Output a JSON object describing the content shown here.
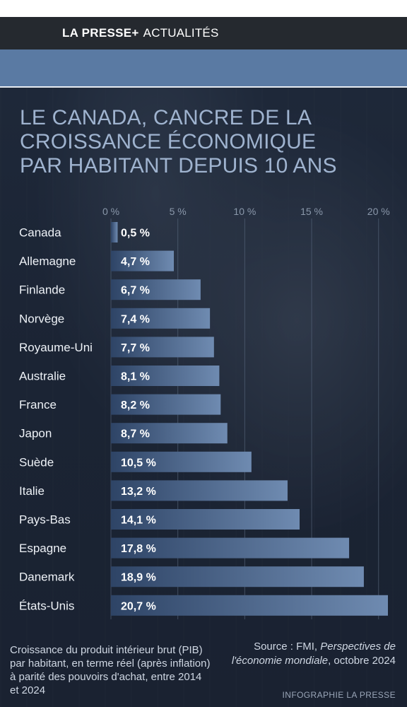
{
  "header": {
    "brand": "LA PRESSE+",
    "section": "ACTUALITÉS"
  },
  "colors": {
    "accent": "#5a7aa3",
    "bar_start": "#2e4466",
    "bar_end": "#6f8bb1",
    "title": "#9fb3cf"
  },
  "chart_data": {
    "type": "bar",
    "orientation": "horizontal",
    "title": "LE CANADA, CANCRE DE LA\nCROISSANCE ÉCONOMIQUE\nPAR HABITANT DEPUIS 10 ANS",
    "xlabel": "",
    "ylabel": "",
    "xlim": [
      0,
      20.7
    ],
    "ticks": [
      0,
      5,
      10,
      15,
      20
    ],
    "tick_labels": [
      "0 %",
      "5 %",
      "10 %",
      "15 %",
      "20 %"
    ],
    "categories": [
      "Canada",
      "Allemagne",
      "Finlande",
      "Norvège",
      "Royaume-Uni",
      "Australie",
      "France",
      "Japon",
      "Suède",
      "Italie",
      "Pays-Bas",
      "Espagne",
      "Danemark",
      "États-Unis"
    ],
    "values": [
      0.5,
      4.7,
      6.7,
      7.4,
      7.7,
      8.1,
      8.2,
      8.7,
      10.5,
      13.2,
      14.1,
      17.8,
      18.9,
      20.7
    ],
    "value_labels": [
      "0,5 %",
      "4,7 %",
      "6,7 %",
      "7,4 %",
      "7,7 %",
      "8,1 %",
      "8,2 %",
      "8,7 %",
      "10,5 %",
      "13,2 %",
      "14,1 %",
      "17,8 %",
      "18,9 %",
      "20,7 %"
    ],
    "grid": true
  },
  "footer": {
    "note": "Croissance du produit intérieur brut (PIB) par habitant, en terme réel (après inflation) à parité des pouvoirs d'achat, entre 2014 et 2024",
    "source_prefix": "Source : FMI, ",
    "source_italic": "Perspectives de l'économie mondiale",
    "source_suffix": ", octobre 2024",
    "credit": "INFOGRAPHIE LA PRESSE"
  }
}
